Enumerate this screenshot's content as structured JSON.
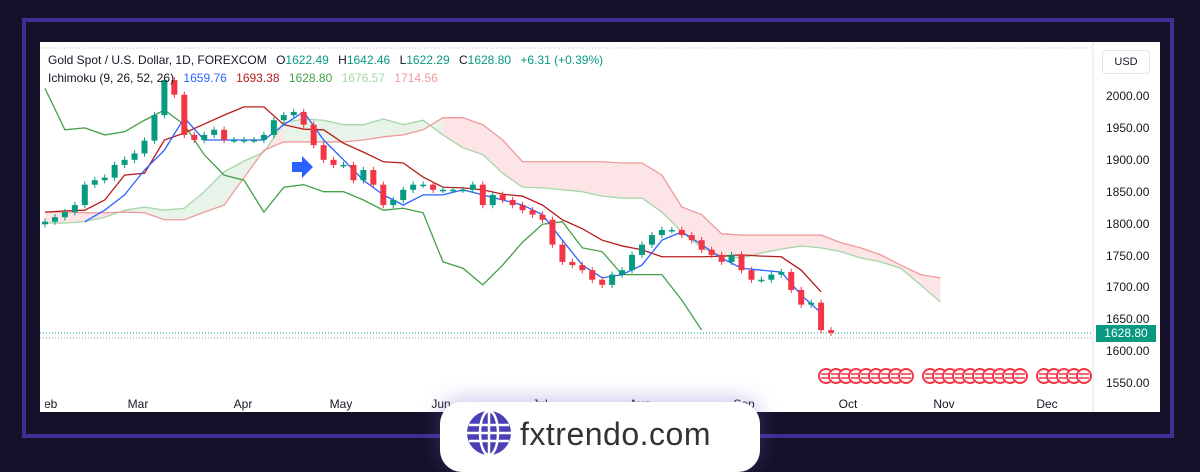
{
  "legend": {
    "symbol": "Gold Spot / U.S. Dollar, 1D, FOREXCOM",
    "o_label": "O",
    "o": "1622.49",
    "h_label": "H",
    "h": "1642.46",
    "l_label": "L",
    "l": "1622.29",
    "c_label": "C",
    "c": "1628.80",
    "change": "+6.31 (+0.39%)",
    "indicator": "Ichimoku (9, 26, 52, 26)",
    "tenkan": "1659.76",
    "kijun": "1693.38",
    "chikou": "1628.80",
    "span_a": "1676.57",
    "span_b": "1714.56"
  },
  "currency_button": "USD",
  "last_price": "1628.80",
  "brand": {
    "text": "fxtrendo.com"
  },
  "colors": {
    "up": "#089981",
    "down": "#f23645",
    "tenkan": "#2962ff",
    "kijun": "#b71c1c",
    "chikou": "#43a047",
    "span_a": "#a5d6a7",
    "span_b": "#ef9a9a",
    "brand": "#4b3fb5"
  },
  "chart_data": {
    "type": "candlestick",
    "title": "Gold Spot / U.S. Dollar, 1D, FOREXCOM",
    "ylim": [
      1500,
      2050
    ],
    "y_ticks": [
      "2000.00",
      "1950.00",
      "1900.00",
      "1850.00",
      "1800.00",
      "1750.00",
      "1700.00",
      "1650.00",
      "1600.00",
      "1550.00"
    ],
    "x_ticks": [
      "Feb",
      "Mar",
      "Apr",
      "May",
      "Jun",
      "Jul",
      "Aug",
      "Sep",
      "Oct",
      "Nov",
      "Dec"
    ],
    "grid": false,
    "closes": [
      1803,
      1810,
      1818,
      1829,
      1861,
      1868,
      1872,
      1892,
      1900,
      1910,
      1930,
      1970,
      2025,
      2002,
      1939,
      1931,
      1939,
      1947,
      1931,
      1931,
      1931,
      1931,
      1939,
      1962,
      1970,
      1975,
      1955,
      1923,
      1900,
      1892,
      1892,
      1868,
      1884,
      1861,
      1829,
      1837,
      1853,
      1861,
      1861,
      1853,
      1853,
      1853,
      1853,
      1861,
      1829,
      1845,
      1837,
      1829,
      1821,
      1814,
      1806,
      1767,
      1740,
      1735,
      1727,
      1712,
      1704,
      1720,
      1727,
      1751,
      1767,
      1782,
      1790,
      1790,
      1782,
      1774,
      1759,
      1751,
      1740,
      1751,
      1727,
      1712,
      1712,
      1720,
      1724,
      1696,
      1673,
      1676,
      1633,
      1628.8
    ],
    "ichimoku": {
      "tenkan": {
        "start": 4,
        "stride": 2,
        "values": [
          1803,
          1821,
          1845,
          1884,
          1915,
          1966,
          1931,
          1931,
          1931,
          1931,
          1955,
          1975,
          1931,
          1900,
          1868,
          1845,
          1829,
          1845,
          1845,
          1853,
          1845,
          1837,
          1829,
          1814,
          1774,
          1735,
          1715,
          1720,
          1735,
          1774,
          1787,
          1767,
          1746,
          1730,
          1727,
          1724,
          1688,
          1660
        ]
      },
      "kijun": {
        "start": 0,
        "stride": 2,
        "values": [
          1818,
          1820,
          1821,
          1837,
          1876,
          1879,
          1931,
          1942,
          1956,
          1970,
          1983,
          1983,
          1955,
          1948,
          1947,
          1926,
          1912,
          1897,
          1895,
          1873,
          1857,
          1856,
          1853,
          1846,
          1843,
          1829,
          1806,
          1792,
          1774,
          1765,
          1759,
          1748,
          1748,
          1748,
          1749,
          1751,
          1749,
          1748,
          1727,
          1693
        ]
      },
      "chikou": {
        "start": 0,
        "stride": 2,
        "values": [
          2012,
          1947,
          1950,
          1939,
          1944,
          1962,
          1978,
          1955,
          1908,
          1876,
          1868,
          1818,
          1857,
          1861,
          1850,
          1850,
          1837,
          1821,
          1824,
          1817,
          1740,
          1730,
          1704,
          1735,
          1771,
          1799,
          1803,
          1762,
          1756,
          1720,
          1720,
          1720,
          1680,
          1633
        ]
      },
      "span_a": {
        "start": 0,
        "stride": 2,
        "values": [
          1801,
          1801,
          1803,
          1810,
          1821,
          1826,
          1821,
          1824,
          1850,
          1881,
          1898,
          1912,
          1958,
          1964,
          1962,
          1955,
          1955,
          1964,
          1955,
          1962,
          1939,
          1919,
          1908,
          1879,
          1857,
          1856,
          1853,
          1850,
          1843,
          1840,
          1840,
          1818,
          1787,
          1762,
          1749,
          1746,
          1754,
          1760,
          1765,
          1762,
          1756,
          1746,
          1740,
          1730,
          1704,
          1677
        ]
      },
      "span_b": {
        "start": 0,
        "stride": 2,
        "values": [
          1818,
          1818,
          1817,
          1817,
          1818,
          1817,
          1806,
          1806,
          1818,
          1829,
          1872,
          1915,
          1928,
          1928,
          1928,
          1928,
          1931,
          1936,
          1939,
          1947,
          1966,
          1966,
          1955,
          1931,
          1897,
          1897,
          1897,
          1897,
          1897,
          1895,
          1895,
          1876,
          1826,
          1814,
          1784,
          1782,
          1782,
          1782,
          1782,
          1782,
          1770,
          1762,
          1751,
          1735,
          1720,
          1715
        ]
      }
    }
  }
}
